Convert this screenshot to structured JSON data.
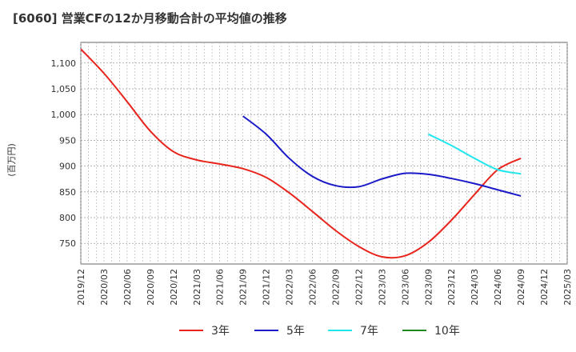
{
  "chart_data": {
    "type": "line",
    "title": "[6060]  営業CFの12か月移動合計の平均値の推移",
    "ylabel": "(百万円)",
    "xlabel": "",
    "ylim": [
      710,
      1140
    ],
    "yticks": [
      "750",
      "800",
      "850",
      "900",
      "950",
      "1,000",
      "1,050",
      "1,100"
    ],
    "ytick_values": [
      750,
      800,
      850,
      900,
      950,
      1000,
      1050,
      1100
    ],
    "x_range": [
      "2019/12",
      "2025/03"
    ],
    "xticks": [
      "2019/12",
      "2020/03",
      "2020/06",
      "2020/09",
      "2020/12",
      "2021/03",
      "2021/06",
      "2021/09",
      "2021/12",
      "2022/03",
      "2022/06",
      "2022/09",
      "2022/12",
      "2023/03",
      "2023/06",
      "2023/09",
      "2023/12",
      "2024/03",
      "2024/06",
      "2024/09",
      "2024/12",
      "2025/03"
    ],
    "grid": true,
    "legend_position": "bottom",
    "series": [
      {
        "name": "3年",
        "color": "#e8241c",
        "points": [
          [
            "2019/12",
            1127
          ],
          [
            "2020/03",
            1080
          ],
          [
            "2020/06",
            1025
          ],
          [
            "2020/09",
            968
          ],
          [
            "2020/12",
            928
          ],
          [
            "2021/03",
            912
          ],
          [
            "2021/06",
            904
          ],
          [
            "2021/09",
            895
          ],
          [
            "2021/12",
            878
          ],
          [
            "2022/03",
            848
          ],
          [
            "2022/06",
            812
          ],
          [
            "2022/09",
            775
          ],
          [
            "2022/12",
            744
          ],
          [
            "2023/03",
            724
          ],
          [
            "2023/06",
            726
          ],
          [
            "2023/09",
            752
          ],
          [
            "2023/12",
            795
          ],
          [
            "2024/03",
            845
          ],
          [
            "2024/06",
            893
          ],
          [
            "2024/09",
            915
          ]
        ]
      },
      {
        "name": "5年",
        "color": "#1a1ac8",
        "points": [
          [
            "2021/09",
            997
          ],
          [
            "2021/12",
            962
          ],
          [
            "2022/03",
            915
          ],
          [
            "2022/06",
            880
          ],
          [
            "2022/09",
            862
          ],
          [
            "2022/12",
            860
          ],
          [
            "2023/03",
            875
          ],
          [
            "2023/06",
            886
          ],
          [
            "2023/09",
            884
          ],
          [
            "2023/12",
            876
          ],
          [
            "2024/03",
            866
          ],
          [
            "2024/06",
            854
          ],
          [
            "2024/09",
            842
          ]
        ]
      },
      {
        "name": "7年",
        "color": "#22e6ee",
        "points": [
          [
            "2023/09",
            962
          ],
          [
            "2023/12",
            940
          ],
          [
            "2024/03",
            915
          ],
          [
            "2024/06",
            893
          ],
          [
            "2024/09",
            885
          ]
        ]
      },
      {
        "name": "10年",
        "color": "#1e8a1e",
        "points": []
      }
    ]
  }
}
